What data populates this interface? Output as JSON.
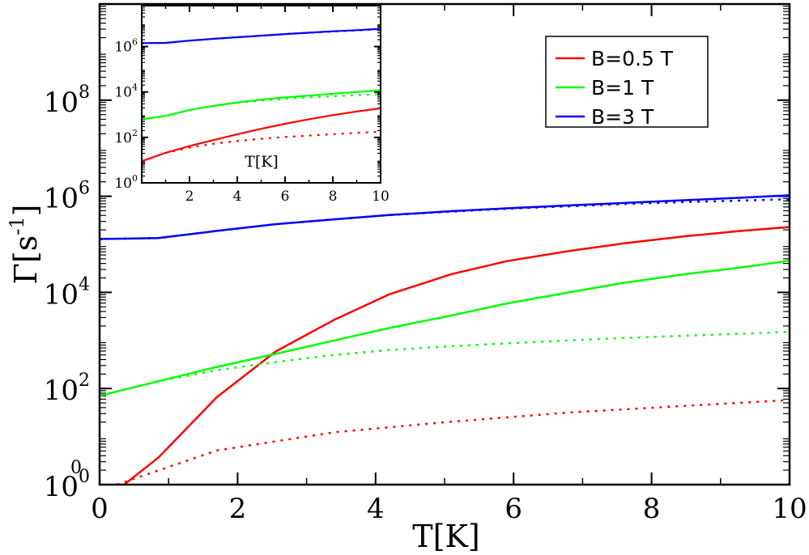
{
  "chart_data": {
    "type": "line",
    "xlabel": "T[K]",
    "ylabel": "Γ[s",
    "ylabel_exp": "-1",
    "ylabel_close": "]",
    "xlim": [
      0,
      10
    ],
    "ylim_log10": [
      0,
      10
    ],
    "x_ticks": [
      {
        "value": 0,
        "label": "0"
      },
      {
        "value": 2,
        "label": "2"
      },
      {
        "value": 4,
        "label": "4"
      },
      {
        "value": 6,
        "label": "6"
      },
      {
        "value": 8,
        "label": "8"
      },
      {
        "value": 10,
        "label": "10"
      }
    ],
    "y_ticks": [
      {
        "value": 0,
        "base": "10",
        "exp": "0"
      },
      {
        "value": 2,
        "base": "10",
        "exp": "2"
      },
      {
        "value": 4,
        "base": "10",
        "exp": "4"
      },
      {
        "value": 6,
        "base": "10",
        "exp": "6"
      },
      {
        "value": 8,
        "base": "10",
        "exp": "8"
      }
    ],
    "extra_labels": [
      {
        "text": "0",
        "note": "stray exponent near lower left"
      }
    ],
    "series": [
      {
        "name": "B=0.5 T",
        "color": "#ff0000",
        "style": "solid",
        "x": [
          0.25,
          0.85,
          1.7,
          2.55,
          3.4,
          4.2,
          5.1,
          5.9,
          6.8,
          7.6,
          8.5,
          9.3,
          10
        ],
        "log10y": [
          -0.12,
          0.56,
          1.82,
          2.77,
          3.43,
          3.96,
          4.38,
          4.65,
          4.86,
          5.02,
          5.17,
          5.28,
          5.36
        ]
      },
      {
        "name": "B=0.5 T (dotted)",
        "color": "#ff0000",
        "style": "dotted",
        "x": [
          0.25,
          1.7,
          3.4,
          5.1,
          6.8,
          8.5,
          10
        ],
        "log10y": [
          0.0,
          0.71,
          1.09,
          1.31,
          1.5,
          1.64,
          1.76
        ]
      },
      {
        "name": "B=1 T",
        "color": "#00ff00",
        "style": "solid",
        "x": [
          0,
          0.85,
          1.7,
          2.55,
          3.4,
          4.2,
          5.1,
          5.9,
          6.8,
          7.6,
          8.5,
          9.3,
          10
        ],
        "log10y": [
          1.85,
          2.15,
          2.45,
          2.72,
          3.0,
          3.26,
          3.52,
          3.77,
          4.0,
          4.2,
          4.38,
          4.52,
          4.66
        ]
      },
      {
        "name": "B=1 T (dotted)",
        "color": "#00ff00",
        "style": "dotted",
        "x": [
          0,
          0.85,
          1.7,
          2.55,
          3.4,
          4.2,
          5.1,
          5.9,
          6.8,
          7.6,
          8.5,
          9.3,
          10
        ],
        "log10y": [
          1.85,
          2.15,
          2.38,
          2.55,
          2.7,
          2.8,
          2.88,
          2.94,
          3.0,
          3.05,
          3.1,
          3.14,
          3.18
        ]
      },
      {
        "name": "B=3 T",
        "color": "#0000ff",
        "style": "solid",
        "x": [
          0,
          0.85,
          1.7,
          2.55,
          3.4,
          4.2,
          5.1,
          5.9,
          6.8,
          7.6,
          8.5,
          9.3,
          10
        ],
        "log10y": [
          5.11,
          5.13,
          5.28,
          5.42,
          5.52,
          5.61,
          5.69,
          5.75,
          5.81,
          5.86,
          5.92,
          5.97,
          6.02
        ]
      },
      {
        "name": "B=3 T (dotted)",
        "color": "#0000ff",
        "style": "dotted",
        "x": [
          0,
          0.85,
          1.7,
          2.55,
          3.4,
          4.2,
          5.1,
          5.9,
          6.8,
          7.6,
          8.5,
          9.3,
          10
        ],
        "log10y": [
          5.11,
          5.13,
          5.28,
          5.42,
          5.52,
          5.61,
          5.68,
          5.74,
          5.79,
          5.84,
          5.88,
          5.91,
          5.94
        ]
      }
    ],
    "legend": {
      "placement": "top-right",
      "entries": [
        {
          "label": "B=0.5 T",
          "color": "#ff0000"
        },
        {
          "label": "B=1 T",
          "color": "#00ff00"
        },
        {
          "label": "B=3 T",
          "color": "#0000ff"
        }
      ]
    },
    "inset": {
      "placement": "top-left",
      "xlabel": "T[K]",
      "xlim": [
        0,
        10
      ],
      "ylim_log10": [
        0,
        7.8
      ],
      "x_ticks": [
        {
          "value": 2,
          "label": "2"
        },
        {
          "value": 4,
          "label": "4"
        },
        {
          "value": 6,
          "label": "6"
        },
        {
          "value": 8,
          "label": "8"
        },
        {
          "value": 10,
          "label": "10"
        }
      ],
      "y_ticks": [
        {
          "value": 0,
          "base": "10",
          "exp": "0"
        },
        {
          "value": 2,
          "base": "10",
          "exp": "2"
        },
        {
          "value": 4,
          "base": "10",
          "exp": "4"
        },
        {
          "value": 6,
          "base": "10",
          "exp": "6"
        }
      ],
      "series": [
        {
          "name": "B=0.5 T",
          "color": "#ff0000",
          "style": "solid",
          "x": [
            0,
            1,
            2,
            3,
            4,
            5,
            6,
            7,
            8,
            9,
            10
          ],
          "log10y": [
            0.95,
            1.32,
            1.62,
            1.88,
            2.14,
            2.38,
            2.6,
            2.8,
            2.98,
            3.14,
            3.28
          ]
        },
        {
          "name": "B=0.5 T (dotted)",
          "color": "#ff0000",
          "style": "dotted",
          "x": [
            0,
            1,
            2,
            3,
            4,
            5,
            6,
            7,
            8,
            9,
            10
          ],
          "log10y": [
            0.95,
            1.32,
            1.55,
            1.72,
            1.84,
            1.94,
            2.02,
            2.08,
            2.14,
            2.2,
            2.25
          ]
        },
        {
          "name": "B=1 T",
          "color": "#00ff00",
          "style": "solid",
          "x": [
            0,
            1,
            2,
            3,
            4,
            5,
            6,
            7,
            8,
            9,
            10
          ],
          "log10y": [
            2.8,
            2.95,
            3.21,
            3.39,
            3.54,
            3.66,
            3.76,
            3.84,
            3.92,
            4.0,
            4.08
          ]
        },
        {
          "name": "B=1 T (dotted)",
          "color": "#00ff00",
          "style": "dotted",
          "x": [
            0,
            1,
            2,
            3,
            4,
            5,
            6,
            7,
            8,
            9,
            10
          ],
          "log10y": [
            2.8,
            2.95,
            3.21,
            3.38,
            3.52,
            3.62,
            3.7,
            3.76,
            3.81,
            3.86,
            3.9
          ]
        },
        {
          "name": "B=3 T",
          "color": "#0000ff",
          "style": "solid",
          "x": [
            0,
            1,
            2,
            3,
            4,
            5,
            6,
            7,
            8,
            9,
            10
          ],
          "log10y": [
            6.15,
            6.16,
            6.26,
            6.34,
            6.41,
            6.48,
            6.55,
            6.61,
            6.67,
            6.72,
            6.78
          ]
        },
        {
          "name": "B=3 T (dotted)",
          "color": "#0000ff",
          "style": "dotted",
          "x": [
            0,
            1,
            2,
            3,
            4,
            5,
            6,
            7,
            8,
            9,
            10
          ],
          "log10y": [
            6.15,
            6.16,
            6.26,
            6.34,
            6.41,
            6.48,
            6.55,
            6.61,
            6.66,
            6.71,
            6.76
          ]
        }
      ]
    }
  }
}
